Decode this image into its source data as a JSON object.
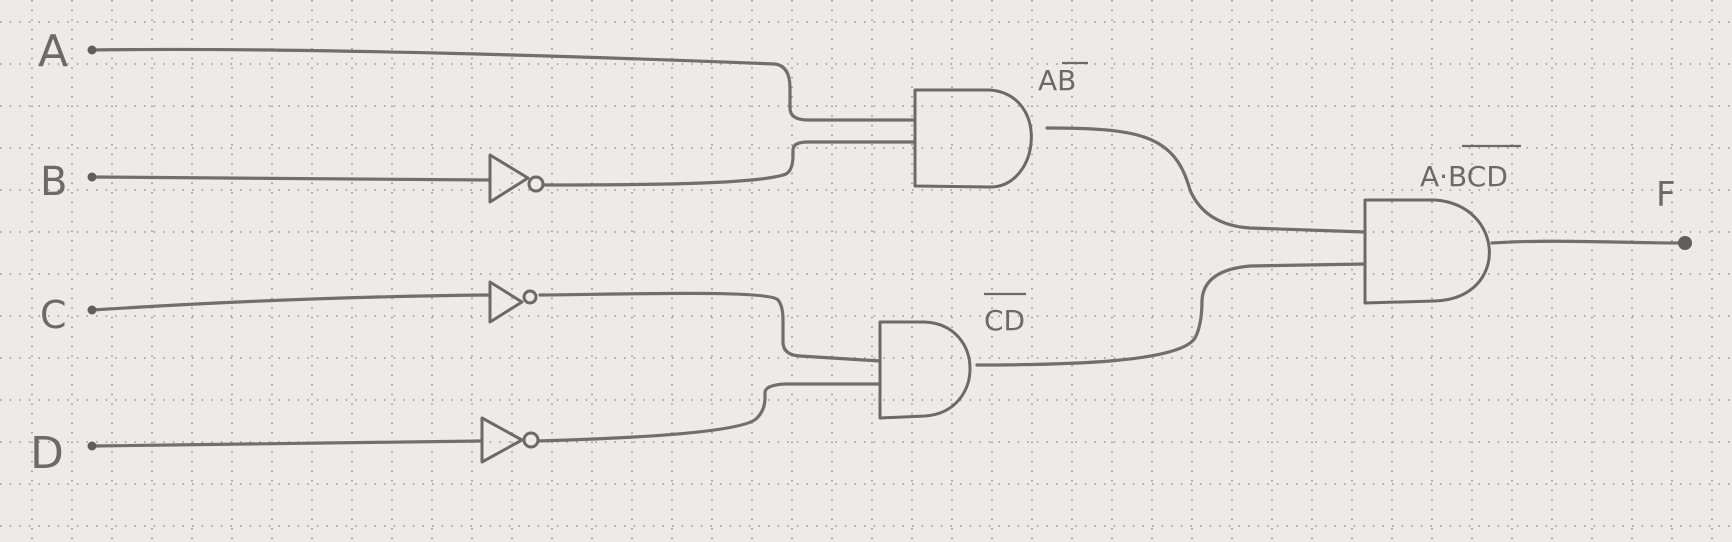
{
  "inputs": {
    "a": "A",
    "b": "B",
    "c": "C",
    "d": "D"
  },
  "output": "F",
  "gate_labels": {
    "and_top": {
      "text": "AB",
      "overline": "B"
    },
    "and_bottom": {
      "text": "CD",
      "overline": "CD"
    },
    "and_final": {
      "text": "A·BCD",
      "overline": "BCD"
    }
  },
  "gates": [
    {
      "type": "NOT",
      "input": "B"
    },
    {
      "type": "NOT",
      "input": "C"
    },
    {
      "type": "NOT",
      "input": "D"
    },
    {
      "type": "AND",
      "inputs": [
        "A",
        "NOT B"
      ],
      "label": "AB"
    },
    {
      "type": "AND",
      "inputs": [
        "NOT C",
        "NOT D"
      ],
      "label": "CD"
    },
    {
      "type": "AND",
      "inputs": [
        "AB",
        "CD"
      ],
      "output": "F"
    }
  ],
  "colors": {
    "paper": "#ecebe8",
    "grid_dot": "#9a9a9a",
    "pencil": "#6a6a6a"
  }
}
